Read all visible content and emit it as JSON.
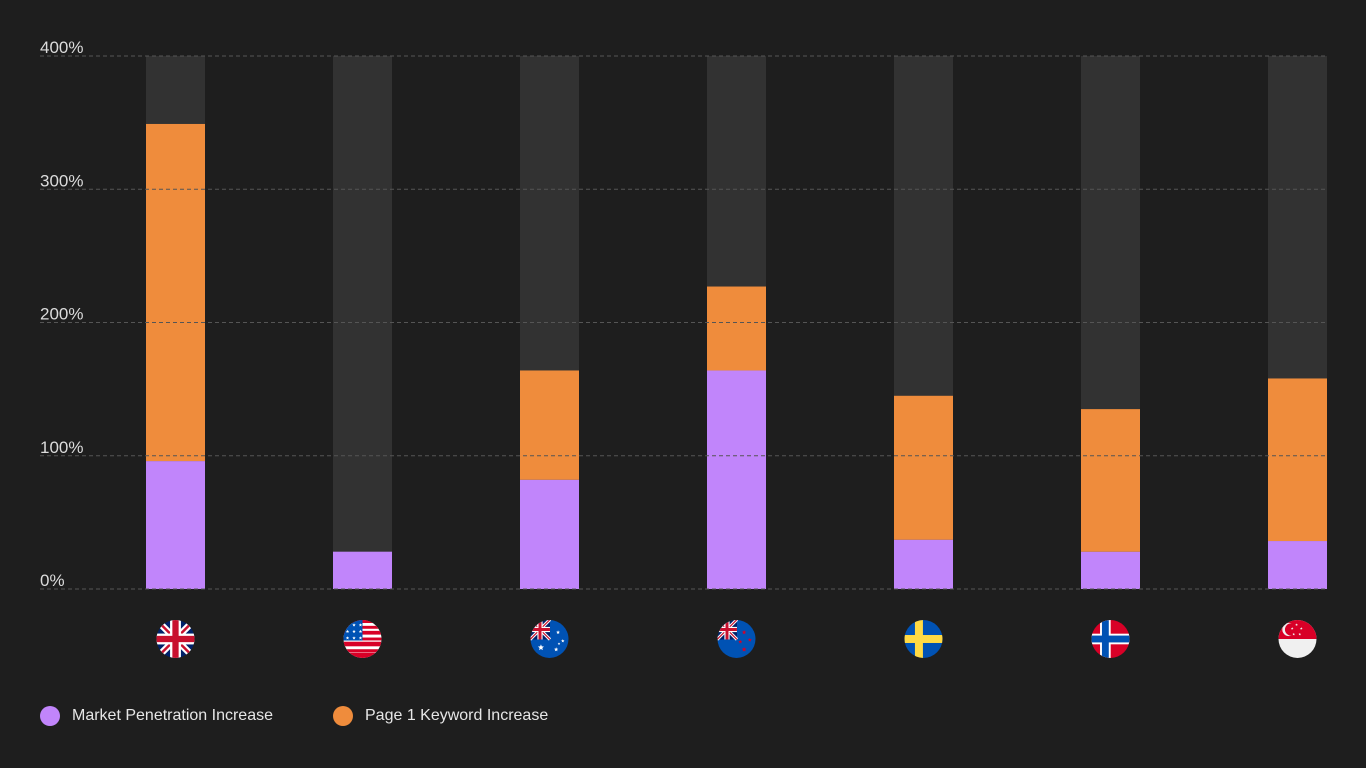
{
  "chart_data": {
    "type": "bar",
    "stacked": true,
    "categories": [
      "United Kingdom",
      "United States",
      "Australia",
      "New Zealand",
      "Sweden",
      "Norway",
      "Singapore"
    ],
    "series": [
      {
        "name": "Market Penetration Increase",
        "color": "#c185fb",
        "values": [
          96,
          28,
          82,
          164,
          37,
          28,
          36
        ]
      },
      {
        "name": "Page 1 Keyword Increase",
        "color": "#ef8c3c",
        "values": [
          253,
          0,
          82,
          63,
          108,
          107,
          122
        ]
      }
    ],
    "track_color": "#323232",
    "ylim": [
      0,
      400
    ],
    "yticks": [
      {
        "value": 0,
        "label": "0%"
      },
      {
        "value": 100,
        "label": "100%"
      },
      {
        "value": 200,
        "label": "200%"
      },
      {
        "value": 300,
        "label": "300%"
      },
      {
        "value": 400,
        "label": "400%"
      }
    ],
    "grid": true,
    "legend_position": "bottom-left",
    "x_icons": [
      "uk-flag-icon",
      "us-flag-icon",
      "australia-flag-icon",
      "new-zealand-flag-icon",
      "sweden-flag-icon",
      "norway-flag-icon",
      "singapore-flag-icon"
    ]
  },
  "legend": {
    "items": [
      {
        "label": "Market Penetration Increase",
        "color": "#c185fb"
      },
      {
        "label": "Page 1 Keyword Increase",
        "color": "#ef8c3c"
      }
    ]
  }
}
